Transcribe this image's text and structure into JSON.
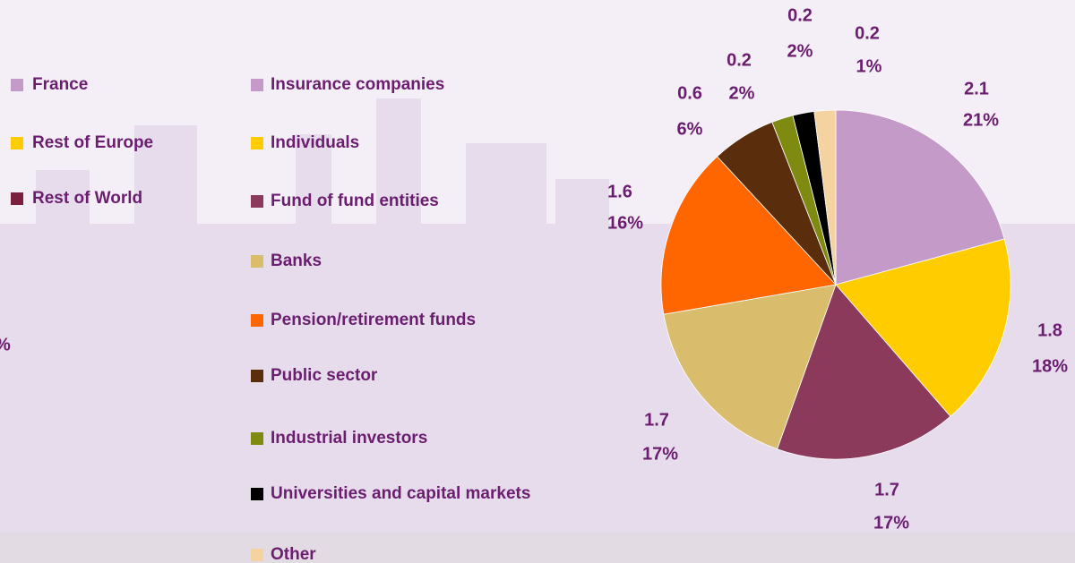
{
  "chart_data": {
    "type": "pie",
    "categories": [
      "Insurance companies",
      "Individuals",
      "Fund of fund entities",
      "Banks",
      "Pension/retirement funds",
      "Public sector",
      "Industrial investors",
      "Universities and capital markets",
      "Other"
    ],
    "values": [
      2.1,
      1.8,
      1.7,
      1.7,
      1.6,
      0.6,
      0.2,
      0.2,
      0.2
    ],
    "percentages": [
      21,
      18,
      17,
      17,
      16,
      6,
      2,
      2,
      1
    ],
    "percentage_labels": [
      "21%",
      "18%",
      "17%",
      "17%",
      "16%",
      "6%",
      "2%",
      "2%",
      "1%"
    ],
    "colors": [
      "#c49bc8",
      "#ffcc00",
      "#8b3a5c",
      "#d9bd6c",
      "#ff6600",
      "#5a2d0c",
      "#7f8a10",
      "#000000",
      "#f5d3a0"
    ],
    "regions": [
      "France",
      "Rest of Europe",
      "Rest of World"
    ],
    "region_colors": [
      "#c49bc8",
      "#ffcc00",
      "#7a1f3d"
    ],
    "annotations": [
      "%"
    ]
  }
}
